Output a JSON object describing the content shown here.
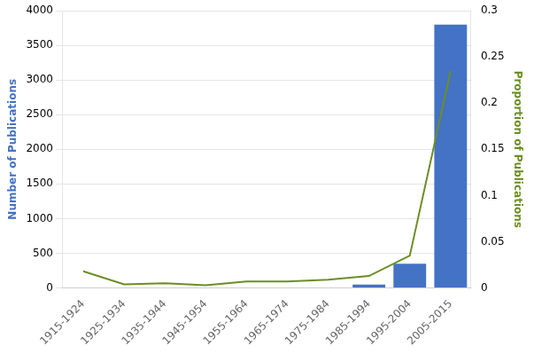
{
  "chart_data": {
    "type": "bar",
    "categories": [
      "1915-1924",
      "1925-1934",
      "1935-1944",
      "1945-1954",
      "1955-1964",
      "1965-1974",
      "1975-1984",
      "1985-1994",
      "1995-2004",
      "2005-2015"
    ],
    "series": [
      {
        "type": "bar",
        "color": "#4472C4",
        "values": [
          0,
          0,
          0,
          0,
          0,
          0,
          0,
          50,
          350,
          3800
        ]
      },
      {
        "type": "line",
        "color": "#6B8E23",
        "axis": "y2",
        "values": [
          0.018,
          0.004,
          0.005,
          0.003,
          0.007,
          0.007,
          0.009,
          0.013,
          0.035,
          0.235
        ]
      }
    ],
    "ylabel": "Number of Publications",
    "y2label": "Proportion of Publications",
    "ylim": [
      0,
      4000
    ],
    "yticks": [
      0,
      500,
      1000,
      1500,
      2000,
      2500,
      3000,
      3500,
      4000
    ],
    "y2lim": [
      0,
      0.3
    ],
    "y2ticks": [
      0,
      0.05,
      0.1,
      0.15,
      0.2,
      0.25,
      0.3
    ],
    "grid": true
  }
}
